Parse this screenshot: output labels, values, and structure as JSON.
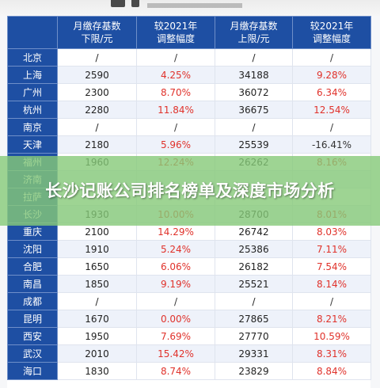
{
  "header": {
    "col0": "",
    "col1": "月缴存基数\n下限/元",
    "col2": "较2021年\n调整幅度",
    "col3": "月缴存基数\n上限/元",
    "col4": "较2021年\n调整幅度"
  },
  "rows": [
    {
      "city": "北京",
      "min": "/",
      "min_change": "/",
      "max": "/",
      "max_change": "/"
    },
    {
      "city": "上海",
      "min": "2590",
      "min_change": "4.25%",
      "max": "34188",
      "max_change": "9.28%"
    },
    {
      "city": "广州",
      "min": "2300",
      "min_change": "8.70%",
      "max": "36072",
      "max_change": "6.34%"
    },
    {
      "city": "杭州",
      "min": "2280",
      "min_change": "11.84%",
      "max": "36675",
      "max_change": "12.54%"
    },
    {
      "city": "南京",
      "min": "/",
      "min_change": "/",
      "max": "/",
      "max_change": "/"
    },
    {
      "city": "天津",
      "min": "2180",
      "min_change": "5.96%",
      "max": "25539",
      "max_change": "-16.41%"
    },
    {
      "city": "福州",
      "min": "1960",
      "min_change": "12.24%",
      "max": "26262",
      "max_change": "8.16%"
    },
    {
      "city": "济南",
      "min": "",
      "min_change": "",
      "max": "",
      "max_change": ""
    },
    {
      "city": "拉萨",
      "min": "",
      "min_change": "",
      "max": "",
      "max_change": ""
    },
    {
      "city": "长沙",
      "min": "1930",
      "min_change": "10.00%",
      "max": "28700",
      "max_change": "8.01%"
    },
    {
      "city": "重庆",
      "min": "2100",
      "min_change": "14.29%",
      "max": "26742",
      "max_change": "8.03%"
    },
    {
      "city": "沈阳",
      "min": "1910",
      "min_change": "5.24%",
      "max": "25386",
      "max_change": "7.11%"
    },
    {
      "city": "合肥",
      "min": "1650",
      "min_change": "6.06%",
      "max": "26182",
      "max_change": "7.54%"
    },
    {
      "city": "南昌",
      "min": "1850",
      "min_change": "9.19%",
      "max": "25521",
      "max_change": "8.14%"
    },
    {
      "city": "成都",
      "min": "/",
      "min_change": "/",
      "max": "/",
      "max_change": "/"
    },
    {
      "city": "昆明",
      "min": "1670",
      "min_change": "0.00%",
      "max": "27865",
      "max_change": "8.21%"
    },
    {
      "city": "西安",
      "min": "1950",
      "min_change": "7.69%",
      "max": "27770",
      "max_change": "10.59%"
    },
    {
      "city": "武汉",
      "min": "2010",
      "min_change": "15.42%",
      "max": "29331",
      "max_change": "8.31%"
    },
    {
      "city": "海口",
      "min": "1830",
      "min_change": "8.74%",
      "max": "23829",
      "max_change": "8.84%"
    }
  ],
  "overlay": {
    "title": "长沙记账公司排名榜单及深度市场分析"
  },
  "colors": {
    "header_blue": "#1e4fa3",
    "red_text": "#e0322b",
    "overlay_green": "#86c978"
  }
}
